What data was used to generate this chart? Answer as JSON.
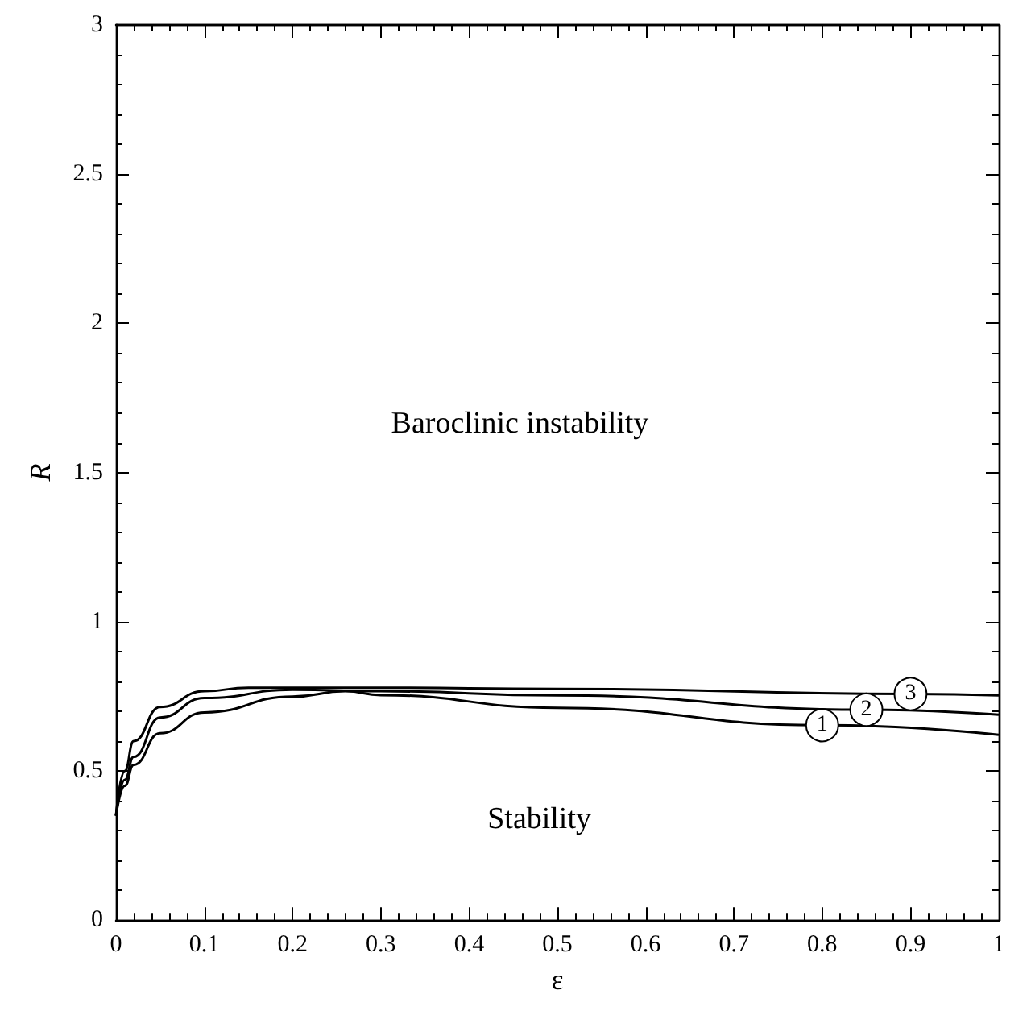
{
  "chart_data": {
    "type": "line",
    "xlabel": "ε",
    "ylabel": "R",
    "xlim": [
      0,
      1
    ],
    "ylim": [
      0,
      3
    ],
    "xticks": [
      0,
      0.1,
      0.2,
      0.3,
      0.4,
      0.5,
      0.6,
      0.7,
      0.8,
      0.9,
      1
    ],
    "yticks": [
      0,
      0.5,
      1,
      1.5,
      2,
      2.5,
      3
    ],
    "grid": false,
    "marker": "none",
    "line_style": "solid",
    "series": [
      {
        "color": "#000000",
        "x": [
          0,
          0.01,
          0.02,
          0.05,
          0.1,
          0.2,
          0.26,
          0.3,
          0.5,
          0.8,
          1
        ],
        "values": [
          0.35,
          0.45,
          0.52,
          0.626,
          0.696,
          0.749,
          0.767,
          0.754,
          0.711,
          0.653,
          0.621
        ]
      },
      {
        "color": "#000000",
        "x": [
          0,
          0.01,
          0.02,
          0.05,
          0.1,
          0.2,
          0.3,
          0.5,
          0.85,
          1
        ],
        "values": [
          0.35,
          0.47,
          0.547,
          0.679,
          0.744,
          0.772,
          0.767,
          0.753,
          0.705,
          0.688
        ]
      },
      {
        "color": "#000000",
        "x": [
          0,
          0.01,
          0.02,
          0.05,
          0.1,
          0.15,
          0.3,
          0.5,
          0.9,
          1
        ],
        "values": [
          0.35,
          0.5,
          0.6,
          0.714,
          0.767,
          0.779,
          0.779,
          0.775,
          0.758,
          0.753
        ]
      }
    ],
    "annotations": [
      {
        "text": "1",
        "x": 0.8,
        "y": 0.653
      },
      {
        "text": "2",
        "x": 0.85,
        "y": 0.705
      },
      {
        "text": "3",
        "x": 0.9,
        "y": 0.758
      },
      "Baroclinic instability",
      "Stability"
    ]
  }
}
